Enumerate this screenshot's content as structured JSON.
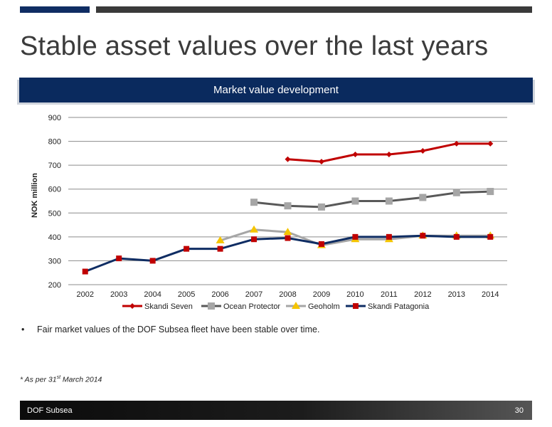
{
  "page": {
    "title": "Stable asset values over the last years",
    "banner": "Market value development",
    "bullet": "Fair market values of the DOF Subsea fleet have been stable over time.",
    "footnote_pre": "* As per 31",
    "footnote_sup": "st",
    "footnote_post": " March 2014",
    "footer_left": "DOF Subsea",
    "footer_right": "30"
  },
  "chart_data": {
    "type": "line",
    "title": "Market value development",
    "xlabel": "",
    "ylabel": "NOK million",
    "ylim": [
      200,
      900
    ],
    "yticks": [
      200,
      300,
      400,
      500,
      600,
      700,
      800,
      900
    ],
    "categories": [
      "2002",
      "2003",
      "2004",
      "2005",
      "2006",
      "2007",
      "2008",
      "2009",
      "2010",
      "2011",
      "2012",
      "2013",
      "2014"
    ],
    "grid": true,
    "legend_position": "bottom",
    "series": [
      {
        "name": "Skandi Seven",
        "color": "#c00000",
        "marker": "diamond",
        "values": [
          null,
          null,
          null,
          null,
          null,
          null,
          725,
          715,
          745,
          745,
          760,
          790,
          790
        ]
      },
      {
        "name": "Ocean Protector",
        "color": "#595959",
        "marker": "square",
        "values": [
          null,
          null,
          null,
          null,
          null,
          545,
          530,
          525,
          550,
          550,
          565,
          585,
          590
        ]
      },
      {
        "name": "Geoholm",
        "color": "#a6a6a6",
        "marker": "triangle",
        "values": [
          null,
          null,
          null,
          null,
          385,
          430,
          420,
          365,
          390,
          390,
          405,
          405,
          405
        ]
      },
      {
        "name": "Skandi Patagonia",
        "color": "#0f2d63",
        "marker": "square-red",
        "values": [
          255,
          310,
          300,
          350,
          350,
          390,
          395,
          370,
          400,
          400,
          405,
          400,
          400
        ]
      }
    ]
  }
}
